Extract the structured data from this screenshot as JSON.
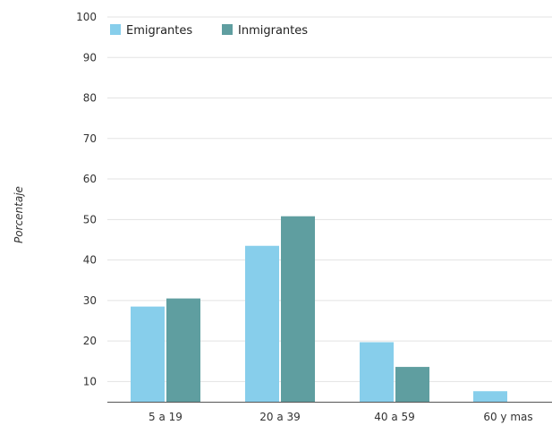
{
  "chart_data": {
    "type": "bar",
    "categories": [
      "5 a 19",
      "20 a 39",
      "40 a 59",
      "60 y mas"
    ],
    "series": [
      {
        "name": "Emigrantes",
        "color": "#87ceeb",
        "values": [
          28.5,
          43.5,
          19.7,
          7.6
        ]
      },
      {
        "name": "Inmigrantes",
        "color": "#5f9ea0",
        "values": [
          30.5,
          50.8,
          13.6,
          0.4
        ]
      }
    ],
    "title": "",
    "xlabel": "",
    "ylabel": "Porcentaje",
    "ylim": [
      5,
      100
    ],
    "yticks": [
      10,
      20,
      30,
      40,
      50,
      60,
      70,
      80,
      90,
      100
    ],
    "grid": true,
    "legend_position": "top-left"
  }
}
